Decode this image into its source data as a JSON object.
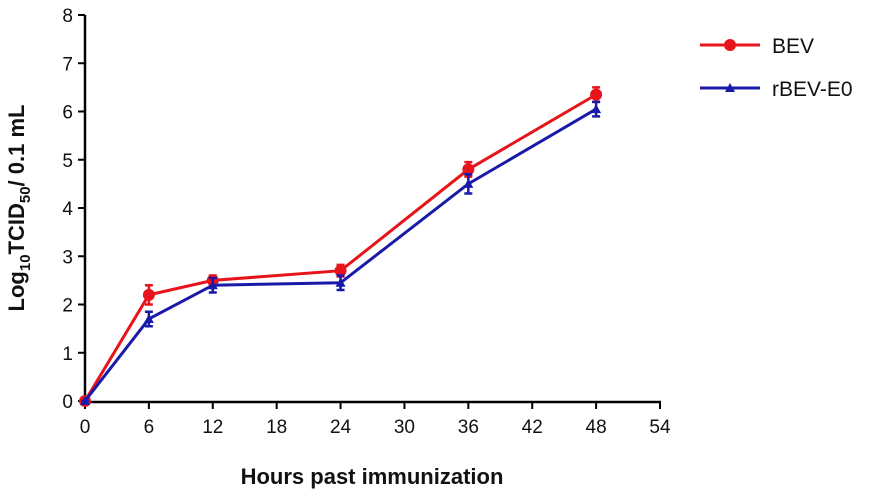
{
  "chart_data": {
    "type": "line",
    "xlabel": "Hours past immunization",
    "ylabel": [
      "Log",
      "10",
      "TCID",
      "50",
      "/ 0.1 mL"
    ],
    "x": [
      0,
      6,
      12,
      24,
      36,
      48
    ],
    "series": [
      {
        "name": "BEV",
        "color": "#e8141b",
        "marker": "circle",
        "values": [
          0,
          2.2,
          2.5,
          2.7,
          4.8,
          6.35
        ],
        "errors": [
          0,
          0.2,
          0.1,
          0.12,
          0.15,
          0.15
        ]
      },
      {
        "name": "rBEV-E0",
        "color": "#1a1aa8",
        "marker": "triangle",
        "values": [
          0,
          1.7,
          2.4,
          2.45,
          4.5,
          6.05
        ],
        "errors": [
          0,
          0.15,
          0.15,
          0.15,
          0.2,
          0.15
        ]
      }
    ],
    "xlim": [
      0,
      54
    ],
    "xticks": [
      0,
      6,
      12,
      18,
      24,
      30,
      36,
      42,
      48,
      54
    ],
    "ylim": [
      0,
      8
    ],
    "yticks": [
      0,
      1,
      2,
      3,
      4,
      5,
      6,
      7,
      8
    ],
    "grid": false,
    "legend": "upper right"
  }
}
